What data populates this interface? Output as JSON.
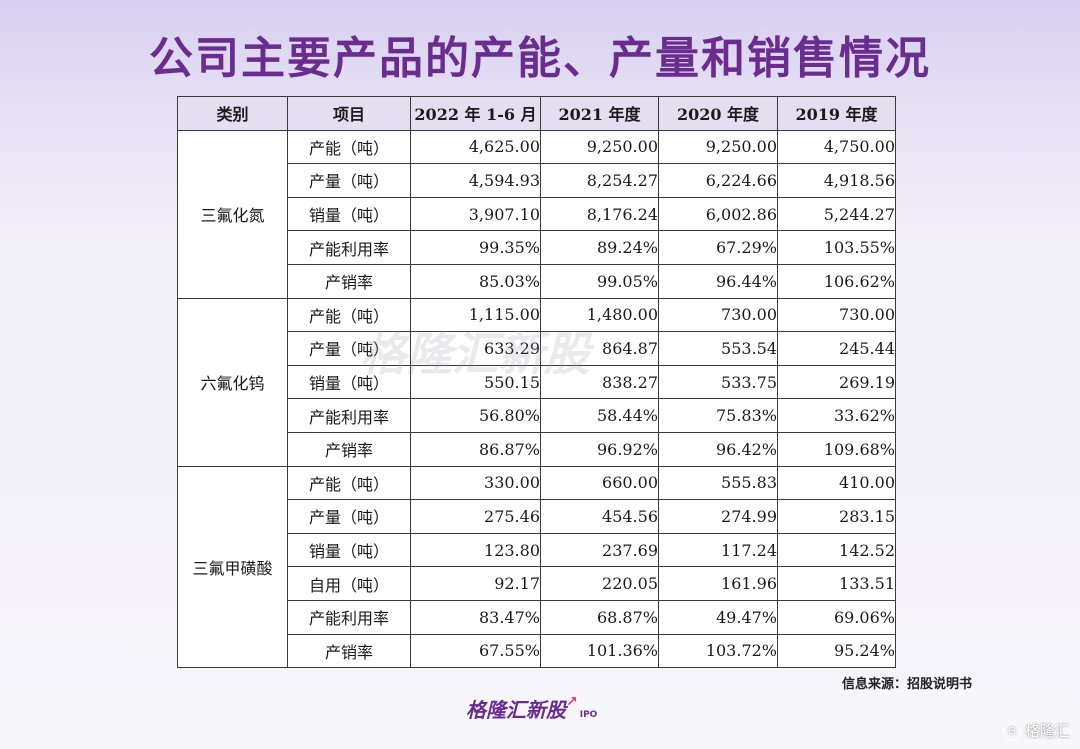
{
  "title": "公司主要产品的产能、产量和销售情况",
  "headers": [
    "类别",
    "项目",
    "2022 年 1-6 月",
    "2021 年度",
    "2020 年度",
    "2019 年度"
  ],
  "groups": [
    {
      "category": "三氟化氮",
      "rows": [
        {
          "item": "产能（吨）",
          "values": [
            "4,625.00",
            "9,250.00",
            "9,250.00",
            "4,750.00"
          ]
        },
        {
          "item": "产量（吨）",
          "values": [
            "4,594.93",
            "8,254.27",
            "6,224.66",
            "4,918.56"
          ]
        },
        {
          "item": "销量（吨）",
          "values": [
            "3,907.10",
            "8,176.24",
            "6,002.86",
            "5,244.27"
          ]
        },
        {
          "item": "产能利用率",
          "values": [
            "99.35%",
            "89.24%",
            "67.29%",
            "103.55%"
          ]
        },
        {
          "item": "产销率",
          "values": [
            "85.03%",
            "99.05%",
            "96.44%",
            "106.62%"
          ]
        }
      ]
    },
    {
      "category": "六氟化钨",
      "rows": [
        {
          "item": "产能（吨）",
          "values": [
            "1,115.00",
            "1,480.00",
            "730.00",
            "730.00"
          ]
        },
        {
          "item": "产量（吨）",
          "values": [
            "633.29",
            "864.87",
            "553.54",
            "245.44"
          ]
        },
        {
          "item": "销量（吨）",
          "values": [
            "550.15",
            "838.27",
            "533.75",
            "269.19"
          ]
        },
        {
          "item": "产能利用率",
          "values": [
            "56.80%",
            "58.44%",
            "75.83%",
            "33.62%"
          ]
        },
        {
          "item": "产销率",
          "values": [
            "86.87%",
            "96.92%",
            "96.42%",
            "109.68%"
          ]
        }
      ]
    },
    {
      "category": "三氟甲磺酸",
      "rows": [
        {
          "item": "产能（吨）",
          "values": [
            "330.00",
            "660.00",
            "555.83",
            "410.00"
          ]
        },
        {
          "item": "产量（吨）",
          "values": [
            "275.46",
            "454.56",
            "274.99",
            "283.15"
          ]
        },
        {
          "item": "销量（吨）",
          "values": [
            "123.80",
            "237.69",
            "117.24",
            "142.52"
          ]
        },
        {
          "item": "自用（吨）",
          "values": [
            "92.17",
            "220.05",
            "161.96",
            "133.51"
          ]
        },
        {
          "item": "产能利用率",
          "values": [
            "83.47%",
            "68.87%",
            "49.47%",
            "69.06%"
          ]
        },
        {
          "item": "产销率",
          "values": [
            "67.55%",
            "101.36%",
            "103.72%",
            "95.24%"
          ]
        }
      ]
    }
  ],
  "source": "信息来源：招股说明书",
  "logo": {
    "text": "格隆汇新股",
    "suffix": "IPO"
  },
  "watermark": "格隆汇新股",
  "corner_logo": {
    "icon": "G",
    "text": "格隆汇"
  },
  "colors": {
    "title": "#6a2d8f",
    "header_bg": "#e3def0"
  }
}
